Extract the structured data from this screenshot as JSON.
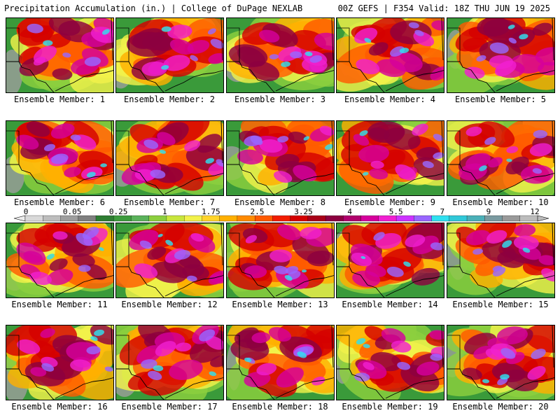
{
  "header": {
    "left": "Precipitation Accumulation (in.) | College of DuPage NEXLAB",
    "right": "00Z GEFS | F354 Valid: 18Z THU JUN 19 2025"
  },
  "colorbar": {
    "labels": [
      "0",
      "0.05",
      "0.25",
      "1",
      "1.75",
      "2.5",
      "3.25",
      "4",
      "5.5",
      "7",
      "9",
      "12"
    ],
    "colors": [
      "#d9d9d9",
      "#bdbdbd",
      "#9e9e9e",
      "#7f7f7f",
      "#2e7d32",
      "#3d9b3d",
      "#5ab25a",
      "#8ccf3e",
      "#c8e63c",
      "#f2f24a",
      "#ffd42a",
      "#ffb000",
      "#ff8a00",
      "#ff5a00",
      "#f21d00",
      "#d40000",
      "#a80018",
      "#8c0040",
      "#b0006c",
      "#d6009c",
      "#f020d0",
      "#cc33ff",
      "#9966ff",
      "#2fe0f0",
      "#30c8d8",
      "#4ab0b8",
      "#7a9aa0",
      "#9a9a9a",
      "#bcbcbc"
    ]
  },
  "panels": [
    {
      "label": "Ensemble Member: 1"
    },
    {
      "label": "Ensemble Member: 2"
    },
    {
      "label": "Ensemble Member: 3"
    },
    {
      "label": "Ensemble Member: 4"
    },
    {
      "label": "Ensemble Member: 5"
    },
    {
      "label": "Ensemble Member: 6"
    },
    {
      "label": "Ensemble Member: 7"
    },
    {
      "label": "Ensemble Member: 8"
    },
    {
      "label": "Ensemble Member: 9"
    },
    {
      "label": "Ensemble Member: 10"
    },
    {
      "label": "Ensemble Member: 11"
    },
    {
      "label": "Ensemble Member: 12"
    },
    {
      "label": "Ensemble Member: 13"
    },
    {
      "label": "Ensemble Member: 14"
    },
    {
      "label": "Ensemble Member: 15"
    },
    {
      "label": "Ensemble Member: 16"
    },
    {
      "label": "Ensemble Member: 17"
    },
    {
      "label": "Ensemble Member: 18"
    },
    {
      "label": "Ensemble Member: 19"
    },
    {
      "label": "Ensemble Member: 20"
    }
  ]
}
